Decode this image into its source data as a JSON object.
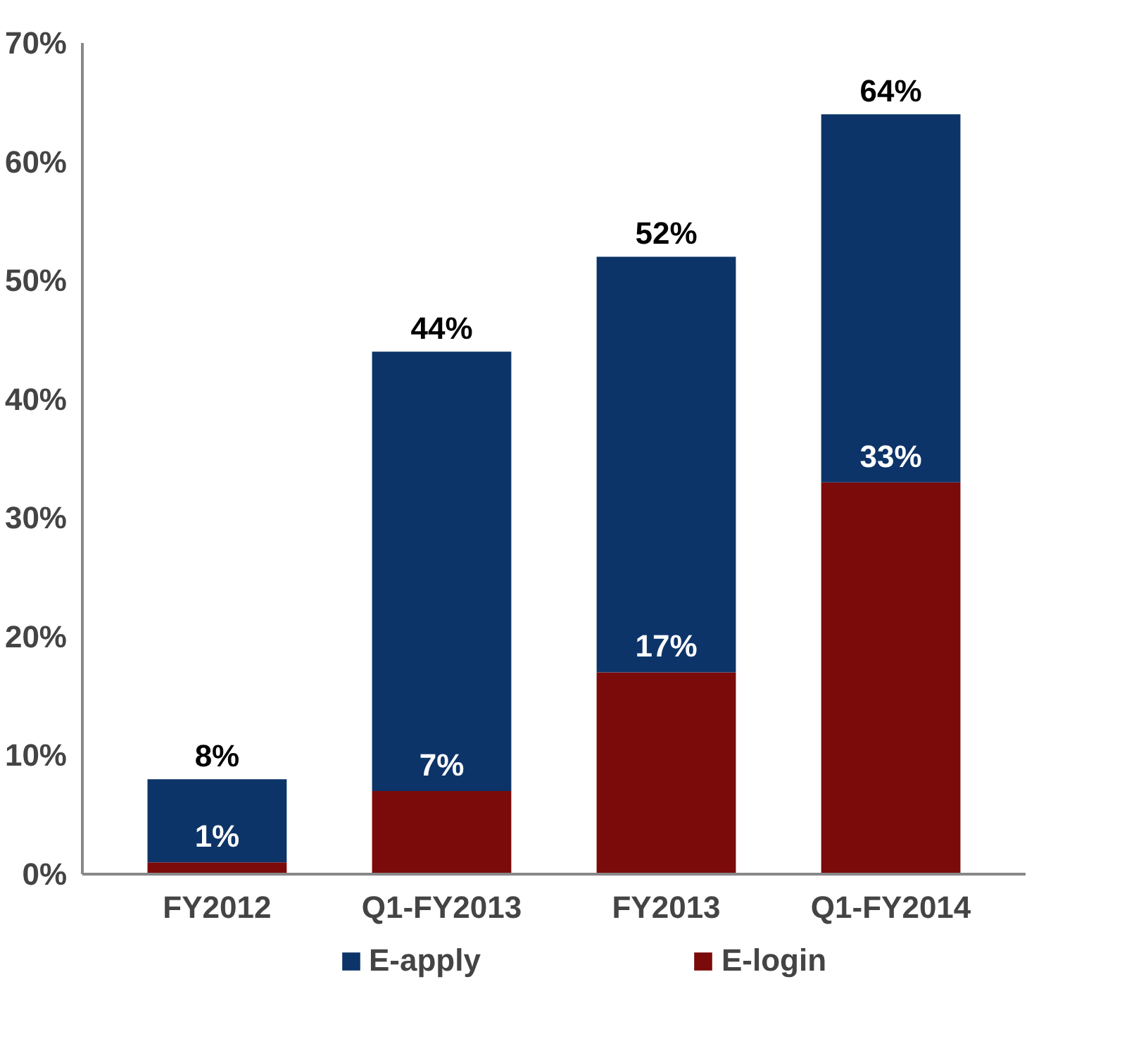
{
  "chart_data": {
    "type": "bar",
    "stacked": true,
    "categories": [
      "FY2012",
      "Q1-FY2013",
      "FY2013",
      "Q1-FY2014"
    ],
    "series": [
      {
        "name": "E-login",
        "color": "#7b0a0a",
        "values": [
          1,
          7,
          17,
          33
        ],
        "value_labels": [
          "1%",
          "7%",
          "17%",
          "33%"
        ]
      },
      {
        "name": "E-apply",
        "color": "#0d3468",
        "values": [
          7,
          37,
          35,
          31
        ]
      }
    ],
    "totals": [
      "8%",
      "44%",
      "52%",
      "64%"
    ],
    "ylim": [
      0,
      70
    ],
    "yticks": [
      {
        "value": 0,
        "label": "0%"
      },
      {
        "value": 10,
        "label": "10%"
      },
      {
        "value": 20,
        "label": "20%"
      },
      {
        "value": 30,
        "label": "30%"
      },
      {
        "value": 40,
        "label": "40%"
      },
      {
        "value": 50,
        "label": "50%"
      },
      {
        "value": 60,
        "label": "60%"
      },
      {
        "value": 70,
        "label": "70%"
      }
    ],
    "grid": false,
    "legend": "bottom"
  }
}
